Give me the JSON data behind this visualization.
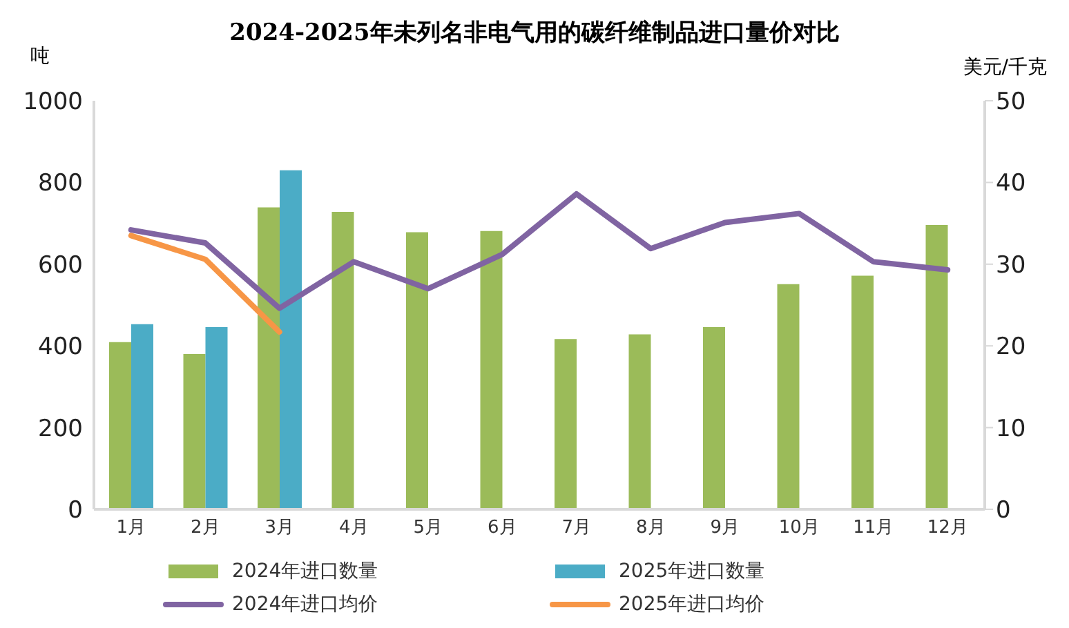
{
  "chart_data": {
    "type": "bar",
    "title": "2024-2025年未列名非电气用的碳纤维制品进口量价对比",
    "ylabel": "吨",
    "y2label": "美元/千克",
    "categories": [
      "1月",
      "2月",
      "3月",
      "4月",
      "5月",
      "6月",
      "7月",
      "8月",
      "9月",
      "10月",
      "11月",
      "12月"
    ],
    "series": [
      {
        "name": "2024年进口数量",
        "color": "#9bbb59",
        "values": [
          409,
          380,
          739,
          728,
          678,
          681,
          417,
          428,
          446,
          551,
          572,
          696
        ]
      },
      {
        "name": "2025年进口数量",
        "color": "#4bacc6",
        "values": [
          453,
          446,
          830,
          null,
          null,
          null,
          null,
          null,
          null,
          null,
          null,
          null
        ]
      },
      {
        "name": "2024年进口均价",
        "type": "line",
        "axis": "y2",
        "color": "#8064a2",
        "values": [
          34.2,
          32.6,
          24.6,
          30.3,
          27.0,
          31.2,
          38.6,
          31.9,
          35.1,
          36.2,
          30.3,
          29.3
        ]
      },
      {
        "name": "2025年进口均价",
        "type": "line",
        "axis": "y2",
        "color": "#f79646",
        "values": [
          33.5,
          30.6,
          21.7,
          null,
          null,
          null,
          null,
          null,
          null,
          null,
          null,
          null
        ]
      }
    ],
    "ylim": [
      0,
      1000
    ],
    "yticks": [
      0,
      200,
      400,
      600,
      800,
      1000
    ],
    "y2lim": [
      0,
      50
    ],
    "y2ticks": [
      0,
      10,
      20,
      30,
      40,
      50
    ],
    "legend": "bottom",
    "marker": "none"
  }
}
